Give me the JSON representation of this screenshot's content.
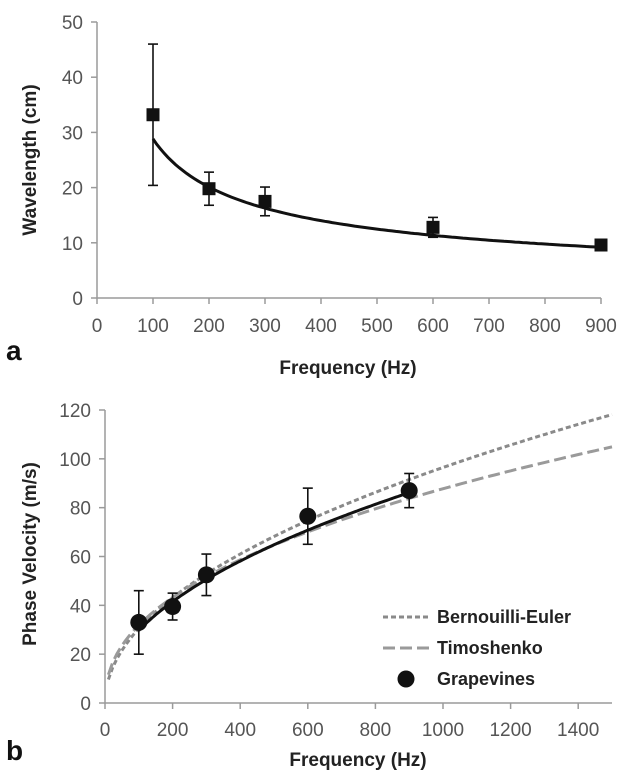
{
  "chart_data": [
    {
      "panel": "a",
      "type": "scatter",
      "title": "",
      "xlabel": "Frequency (Hz)",
      "ylabel": "Wavelength (cm)",
      "xlim": [
        0,
        900
      ],
      "ylim": [
        0,
        50
      ],
      "xticks": [
        "0",
        "100",
        "200",
        "300",
        "400",
        "500",
        "600",
        "700",
        "800",
        "900"
      ],
      "yticks": [
        "0",
        "10",
        "20",
        "30",
        "40",
        "50"
      ],
      "grid": false,
      "series": [
        {
          "marker": "square",
          "color": "#111111",
          "points": [
            {
              "x": 100,
              "y": 33.2,
              "err": 12.8
            },
            {
              "x": 200,
              "y": 19.8,
              "err": 3.0
            },
            {
              "x": 300,
              "y": 17.5,
              "err": 2.6
            },
            {
              "x": 600,
              "y": 12.8,
              "err": 1.8
            },
            {
              "x": 900,
              "y": 9.6,
              "err": 0.6
            }
          ]
        }
      ],
      "fit": {
        "type": "power",
        "a": 316,
        "b": -0.52,
        "xrange": [
          100,
          900
        ],
        "color": "#111111"
      }
    },
    {
      "panel": "b",
      "type": "scatter",
      "title": "",
      "xlabel": "Frequency (Hz)",
      "ylabel": "Phase Velocity (m/s)",
      "xlim": [
        0,
        1500
      ],
      "ylim": [
        0,
        120
      ],
      "xticks": [
        "0",
        "200",
        "400",
        "600",
        "800",
        "1000",
        "1200",
        "1400"
      ],
      "yticks": [
        "0",
        "20",
        "40",
        "60",
        "80",
        "100",
        "120"
      ],
      "grid": false,
      "legend_position": "bottom-right",
      "series": [
        {
          "name": "Bernouilli-Euler",
          "style": "short-dash",
          "color": "#8a8a8a",
          "curve": {
            "type": "power",
            "a": 3.05,
            "b": 0.5,
            "xrange": [
              10,
              1500
            ]
          }
        },
        {
          "name": "Timoshenko",
          "style": "long-dash",
          "color": "#9a9a9a",
          "curve": {
            "type": "power",
            "a": 4.2,
            "b": 0.44,
            "xrange": [
              10,
              1500
            ]
          }
        },
        {
          "name": "Grapevines",
          "marker": "circle",
          "color": "#111111",
          "points": [
            {
              "x": 100,
              "y": 33,
              "err": 13
            },
            {
              "x": 200,
              "y": 39.5,
              "err": 5.5
            },
            {
              "x": 300,
              "y": 52.5,
              "err": 8.5
            },
            {
              "x": 600,
              "y": 76.5,
              "err": 11.5
            },
            {
              "x": 900,
              "y": 87,
              "err": 7
            }
          ]
        }
      ],
      "fit": {
        "type": "power",
        "a": 3.18,
        "b": 0.485,
        "xrange": [
          100,
          900
        ],
        "color": "#111111"
      }
    }
  ]
}
